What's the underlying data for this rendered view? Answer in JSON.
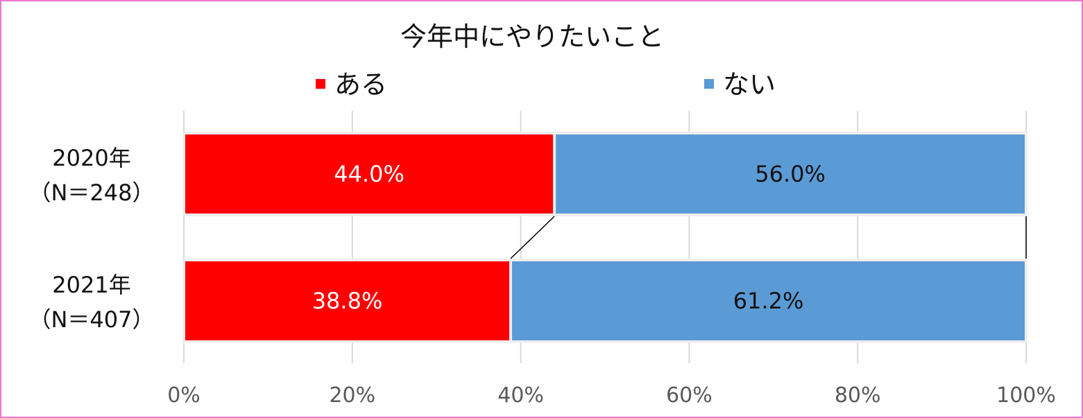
{
  "chart_data": {
    "type": "bar",
    "orientation": "horizontal",
    "stacked": "percent",
    "title": "今年中にやりたいこと",
    "categories": [
      {
        "year": "2020年",
        "n": "（N＝248）"
      },
      {
        "year": "2021年",
        "n": "（N＝407）"
      }
    ],
    "series": [
      {
        "name": "ある",
        "color": "#ff0000",
        "label_color": "#ffffff",
        "values": [
          44.0,
          38.8
        ]
      },
      {
        "name": "ない",
        "color": "#5b9bd5",
        "label_color": "#111111",
        "values": [
          56.0,
          61.2
        ]
      }
    ],
    "xlim": [
      0,
      100
    ],
    "xticks": [
      "0%",
      "20%",
      "40%",
      "60%",
      "80%",
      "100%"
    ],
    "value_format": "percent_1dp",
    "series_lines": true,
    "grid": true,
    "legend": "top"
  }
}
